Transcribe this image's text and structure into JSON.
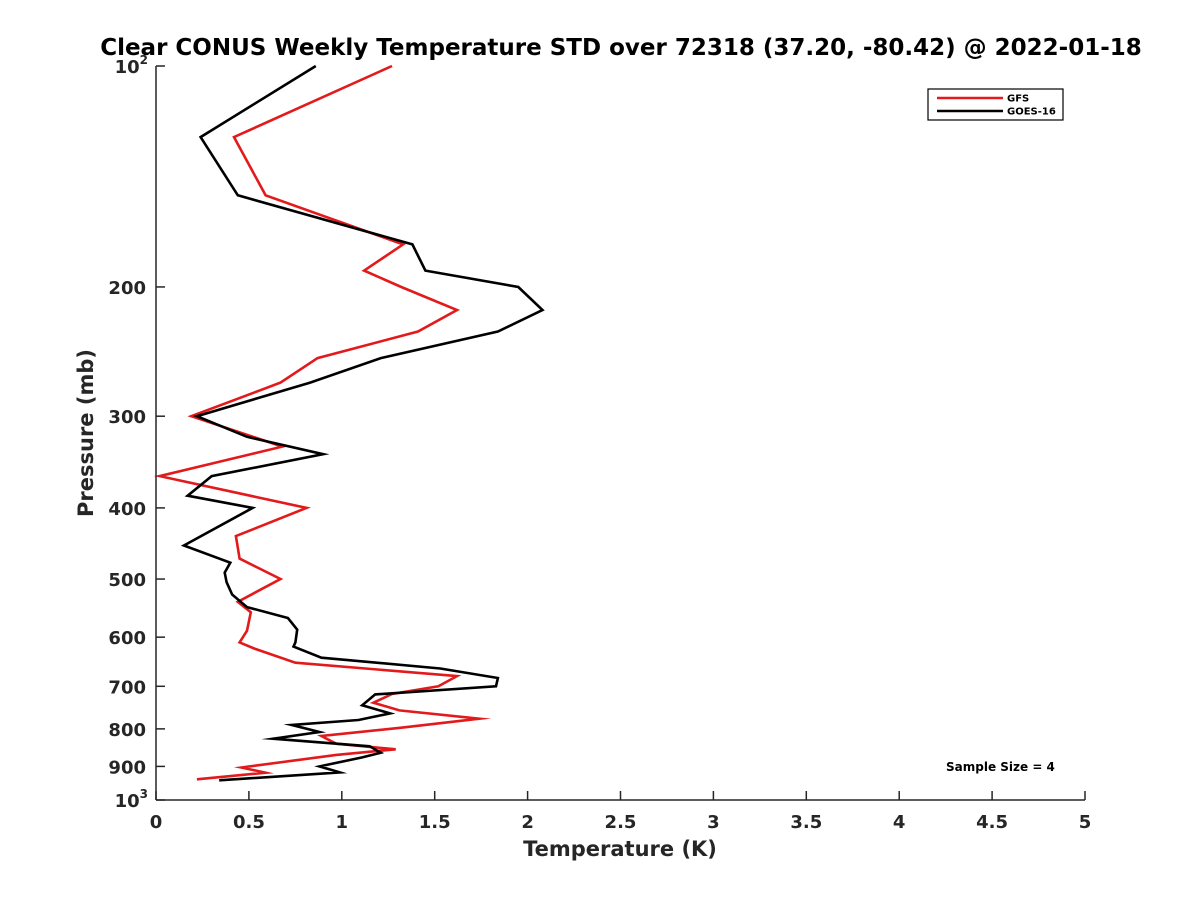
{
  "chart_data": {
    "type": "line",
    "title": "Clear CONUS Weekly Temperature STD over 72318 (37.20, -80.42) @ 2022-01-18",
    "xlabel": "Temperature (K)",
    "ylabel": "Pressure (mb)",
    "xlim": [
      0,
      5
    ],
    "ylim": [
      100,
      1000
    ],
    "y_scale": "log",
    "y_reversed": true,
    "x_ticks": [
      "0",
      "0.5",
      "1",
      "1.5",
      "2",
      "2.5",
      "3",
      "3.5",
      "4",
      "4.5",
      "5"
    ],
    "x_tick_values": [
      0,
      0.5,
      1,
      1.5,
      2,
      2.5,
      3,
      3.5,
      4,
      4.5,
      5
    ],
    "y_ticks": [
      {
        "value": 100,
        "base": "10",
        "exp": "2"
      },
      {
        "value": 200,
        "label": "200"
      },
      {
        "value": 300,
        "label": "300"
      },
      {
        "value": 400,
        "label": "400"
      },
      {
        "value": 500,
        "label": "500"
      },
      {
        "value": 600,
        "label": "600"
      },
      {
        "value": 700,
        "label": "700"
      },
      {
        "value": 800,
        "label": "800"
      },
      {
        "value": 900,
        "label": "900"
      },
      {
        "value": 1000,
        "base": "10",
        "exp": "3"
      }
    ],
    "grid": false,
    "legend_position": "top-right",
    "annotation": "Sample Size = 4",
    "series": [
      {
        "name": "GFS",
        "color": "#e31a1c",
        "points": [
          [
            1.27,
            100
          ],
          [
            0.42,
            125
          ],
          [
            0.59,
            150
          ],
          [
            1.33,
            175
          ],
          [
            1.12,
            190
          ],
          [
            1.32,
            200
          ],
          [
            1.62,
            215
          ],
          [
            1.41,
            230
          ],
          [
            0.87,
            250
          ],
          [
            0.67,
            270
          ],
          [
            0.19,
            300
          ],
          [
            0.68,
            330
          ],
          [
            0.02,
            362
          ],
          [
            0.81,
            400
          ],
          [
            0.43,
            437
          ],
          [
            0.45,
            469
          ],
          [
            0.67,
            500
          ],
          [
            0.44,
            537
          ],
          [
            0.51,
            555
          ],
          [
            0.49,
            588
          ],
          [
            0.45,
            610
          ],
          [
            0.53,
            622
          ],
          [
            0.75,
            650
          ],
          [
            1.62,
            678
          ],
          [
            1.52,
            700
          ],
          [
            1.27,
            717
          ],
          [
            1.17,
            737
          ],
          [
            1.31,
            755
          ],
          [
            1.74,
            775
          ],
          [
            1.32,
            797
          ],
          [
            0.89,
            818
          ],
          [
            0.97,
            838
          ],
          [
            1.29,
            853
          ],
          [
            0.97,
            868
          ],
          [
            0.46,
            903
          ],
          [
            0.59,
            918
          ],
          [
            0.22,
            937
          ]
        ]
      },
      {
        "name": "GOES-16",
        "color": "#000000",
        "points": [
          [
            0.86,
            100
          ],
          [
            0.24,
            125
          ],
          [
            0.44,
            150
          ],
          [
            1.38,
            175
          ],
          [
            1.45,
            190
          ],
          [
            1.95,
            200
          ],
          [
            2.08,
            215
          ],
          [
            1.84,
            230
          ],
          [
            1.21,
            250
          ],
          [
            0.83,
            270
          ],
          [
            0.22,
            300
          ],
          [
            0.49,
            320
          ],
          [
            0.9,
            338
          ],
          [
            0.3,
            362
          ],
          [
            0.17,
            385
          ],
          [
            0.52,
            400
          ],
          [
            0.15,
            450
          ],
          [
            0.4,
            475
          ],
          [
            0.37,
            490
          ],
          [
            0.38,
            505
          ],
          [
            0.41,
            525
          ],
          [
            0.49,
            546
          ],
          [
            0.71,
            565
          ],
          [
            0.76,
            586
          ],
          [
            0.75,
            610
          ],
          [
            0.74,
            618
          ],
          [
            0.89,
            640
          ],
          [
            1.53,
            662
          ],
          [
            1.84,
            682
          ],
          [
            1.83,
            700
          ],
          [
            1.18,
            718
          ],
          [
            1.11,
            743
          ],
          [
            1.26,
            762
          ],
          [
            1.09,
            778
          ],
          [
            0.73,
            790
          ],
          [
            0.88,
            808
          ],
          [
            0.63,
            825
          ],
          [
            1.15,
            845
          ],
          [
            1.21,
            862
          ],
          [
            1.11,
            875
          ],
          [
            0.88,
            900
          ],
          [
            0.99,
            917
          ],
          [
            0.34,
            940
          ]
        ]
      }
    ]
  },
  "colors": {
    "axis": "#262626",
    "background": "#ffffff"
  }
}
